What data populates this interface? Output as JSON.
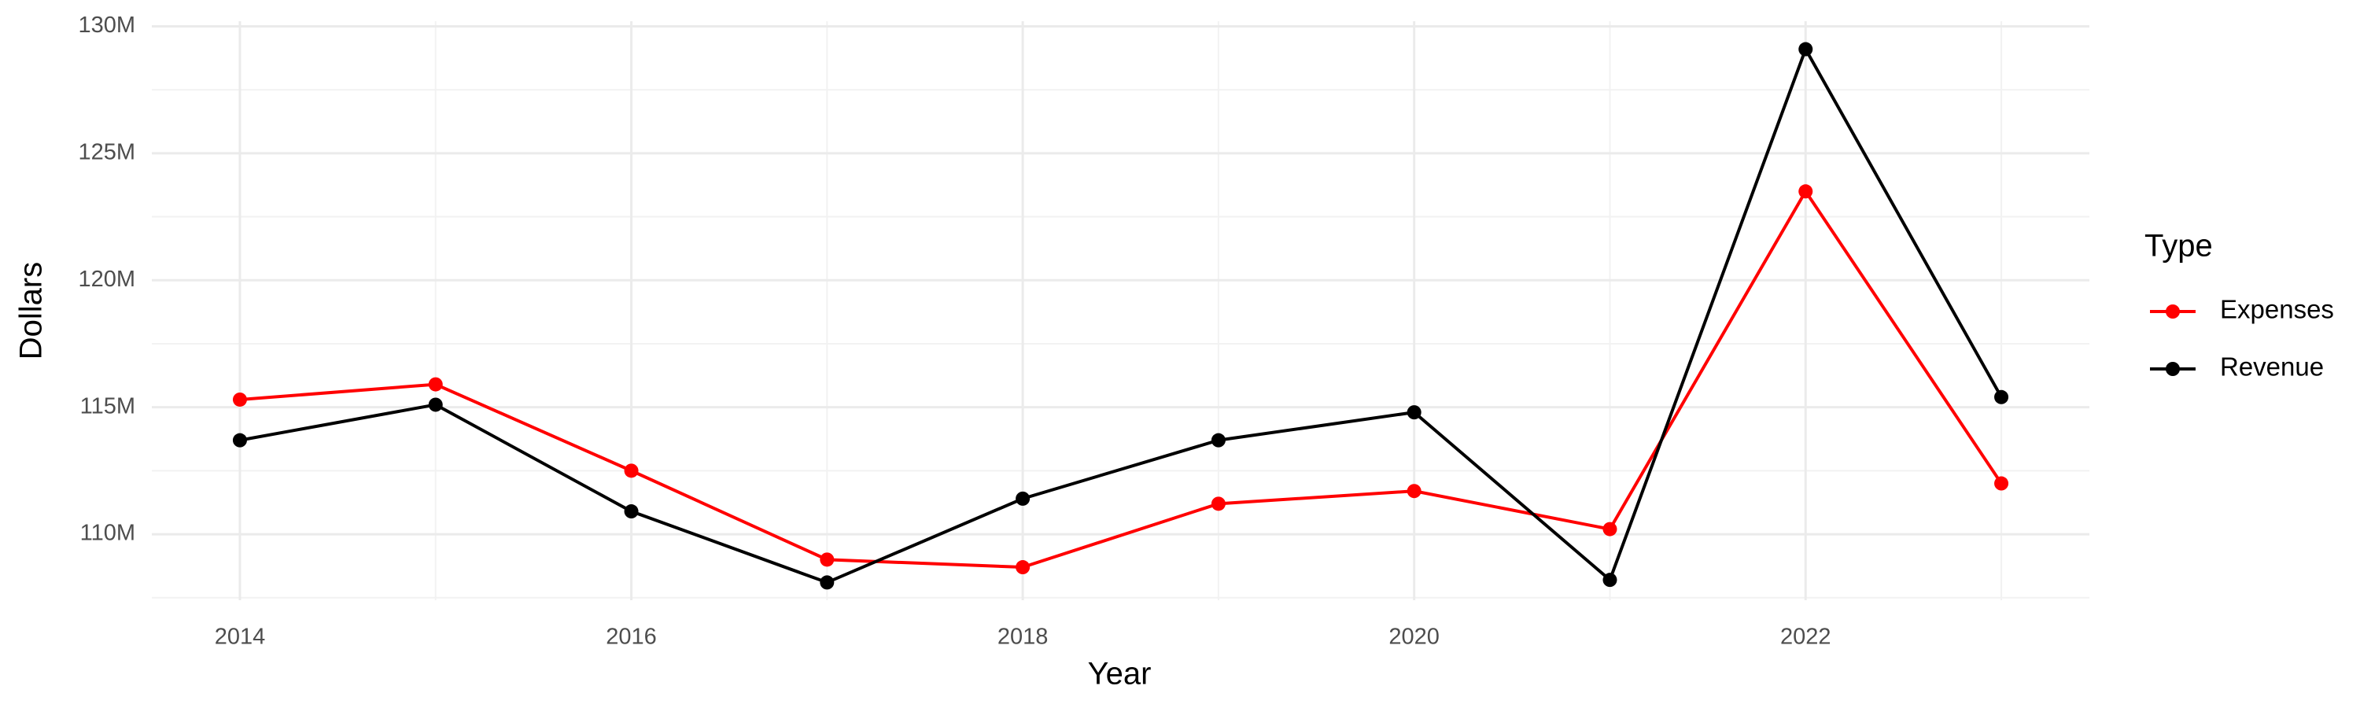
{
  "chart_data": {
    "type": "line",
    "x_label": "Year",
    "y_label": "Dollars",
    "legend_title": "Type",
    "legend_position": "right",
    "grid": true,
    "x": [
      2014,
      2015,
      2016,
      2017,
      2018,
      2019,
      2020,
      2021,
      2022,
      2023
    ],
    "series": [
      {
        "name": "Expenses",
        "color": "#ff0000",
        "values": [
          115300000,
          115900000,
          112500000,
          109000000,
          108700000,
          111200000,
          111700000,
          110200000,
          123500000,
          112000000
        ]
      },
      {
        "name": "Revenue",
        "color": "#000000",
        "values": [
          113700000,
          115100000,
          110900000,
          108100000,
          111400000,
          113700000,
          114800000,
          108200000,
          129100000,
          115400000
        ]
      }
    ],
    "xlim": [
      2013.55,
      2023.45
    ],
    "xticks": [
      2014,
      2016,
      2018,
      2020,
      2022
    ],
    "x_minor_ticks": [
      2015,
      2017,
      2019,
      2021,
      2023
    ],
    "ylim": [
      107400000,
      130200000
    ],
    "yticks": [
      {
        "value": 110000000,
        "label": "110M"
      },
      {
        "value": 115000000,
        "label": "115M"
      },
      {
        "value": 120000000,
        "label": "120M"
      },
      {
        "value": 125000000,
        "label": "125M"
      },
      {
        "value": 130000000,
        "label": "130M"
      }
    ],
    "y_minor_ticks": [
      107500000,
      112500000,
      117500000,
      122500000,
      127500000
    ]
  }
}
